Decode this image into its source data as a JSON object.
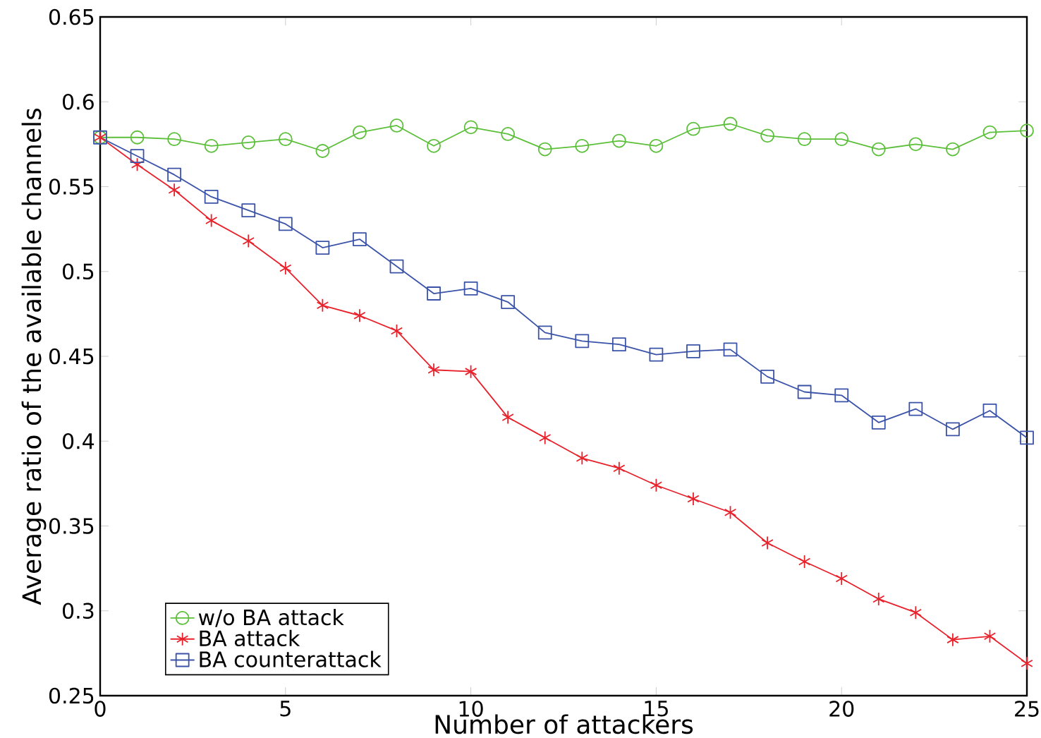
{
  "chart_data": {
    "type": "line",
    "xlabel": "Number of attackers",
    "ylabel": "Average ratio of the available channels",
    "x": [
      0,
      1,
      2,
      3,
      4,
      5,
      6,
      7,
      8,
      9,
      10,
      11,
      12,
      13,
      14,
      15,
      16,
      17,
      18,
      19,
      20,
      21,
      22,
      23,
      24,
      25
    ],
    "series": [
      {
        "name": "w/o BA attack",
        "color": "#5cbf3a",
        "marker": "circle",
        "values": [
          0.579,
          0.579,
          0.578,
          0.574,
          0.576,
          0.578,
          0.571,
          0.582,
          0.586,
          0.574,
          0.585,
          0.581,
          0.572,
          0.574,
          0.577,
          0.574,
          0.584,
          0.587,
          0.58,
          0.578,
          0.578,
          0.572,
          0.575,
          0.572,
          0.582,
          0.583
        ]
      },
      {
        "name": "BA attack",
        "color": "#e8212b",
        "marker": "cross",
        "values": [
          0.579,
          0.563,
          0.548,
          0.53,
          0.518,
          0.502,
          0.48,
          0.474,
          0.465,
          0.442,
          0.441,
          0.414,
          0.402,
          0.39,
          0.384,
          0.374,
          0.366,
          0.358,
          0.34,
          0.329,
          0.319,
          0.307,
          0.299,
          0.283,
          0.285,
          0.269
        ]
      },
      {
        "name": "BA counterattack",
        "color": "#3a53a8",
        "marker": "square",
        "values": [
          0.579,
          0.568,
          0.557,
          0.544,
          0.536,
          0.528,
          0.514,
          0.519,
          0.503,
          0.487,
          0.49,
          0.482,
          0.464,
          0.459,
          0.457,
          0.451,
          0.453,
          0.454,
          0.438,
          0.429,
          0.427,
          0.411,
          0.419,
          0.407,
          0.418,
          0.402
        ]
      }
    ],
    "xlim": [
      0,
      25
    ],
    "xticks": [
      0,
      5,
      10,
      15,
      20,
      25
    ],
    "ylim": [
      0.25,
      0.65
    ],
    "yticks": [
      0.25,
      0.3,
      0.35,
      0.4,
      0.45,
      0.5,
      0.55,
      0.6,
      0.65
    ],
    "grid": false,
    "legend": "bottom left",
    "line_style": "solid"
  }
}
